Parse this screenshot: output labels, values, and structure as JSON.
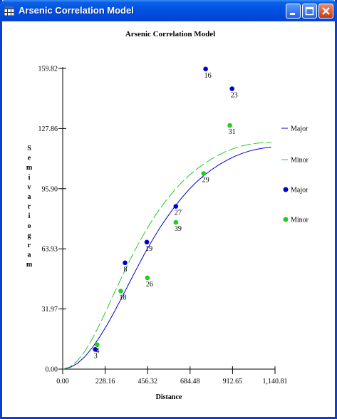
{
  "window": {
    "title": "Arsenic Correlation Model",
    "minimize_label": "Minimize",
    "maximize_label": "Maximize",
    "close_label": "Close"
  },
  "chart_data": {
    "type": "scatter",
    "title": "Arsenic Correlation Model",
    "xlabel": "Distance",
    "ylabel": "Semivariogram",
    "xlim": [
      0,
      1140.81
    ],
    "ylim": [
      0,
      159.82
    ],
    "x_ticks": [
      "0.00",
      "228.16",
      "456.32",
      "684.48",
      "912.65",
      "1,140.81"
    ],
    "y_ticks": [
      "0.00",
      "31.97",
      "63.93",
      "95.90",
      "127.86",
      "159.82"
    ],
    "x_tick_values": [
      0,
      228.16,
      456.32,
      684.48,
      912.65,
      1140.81
    ],
    "y_tick_values": [
      0,
      31.97,
      63.93,
      95.9,
      127.86,
      159.82
    ],
    "grid": false,
    "legend_position": "right",
    "series": [
      {
        "name": "Major",
        "kind": "line",
        "color": "#0000cc",
        "x": [
          0,
          40,
          80,
          120,
          160,
          200,
          240,
          280,
          320,
          360,
          400,
          440,
          480,
          520,
          560,
          600,
          640,
          680,
          720,
          760,
          800,
          840,
          880,
          920,
          960,
          1000,
          1040,
          1080,
          1120
        ],
        "y": [
          0,
          0.9,
          3.1,
          6.7,
          11.5,
          17.3,
          23.8,
          30.9,
          38.5,
          46.2,
          53.9,
          61.3,
          68.3,
          74.8,
          80.6,
          86.1,
          91.1,
          95.6,
          99.6,
          103.0,
          106.0,
          108.6,
          110.9,
          112.9,
          114.5,
          115.8,
          116.8,
          117.5,
          118.0
        ]
      },
      {
        "name": "Minor",
        "kind": "line",
        "color": "#22cc22",
        "x": [
          0,
          40,
          80,
          120,
          160,
          200,
          240,
          280,
          320,
          360,
          400,
          440,
          480,
          520,
          560,
          600,
          640,
          680,
          720,
          760,
          800,
          840,
          880,
          920,
          960,
          1000,
          1040,
          1080,
          1120
        ],
        "y": [
          0,
          1.2,
          4.5,
          9.6,
          16.3,
          24.0,
          32.4,
          41.0,
          49.5,
          57.7,
          65.4,
          72.5,
          79.0,
          84.9,
          90.2,
          95.0,
          99.3,
          103.0,
          106.3,
          109.2,
          111.7,
          113.9,
          115.8,
          117.3,
          118.5,
          119.4,
          120.0,
          120.4,
          120.6
        ]
      },
      {
        "name": "Major",
        "kind": "points",
        "color": "#0000cc",
        "points": [
          {
            "label": "3",
            "x": 175,
            "y": 10.5
          },
          {
            "label": "8",
            "x": 335,
            "y": 56.5
          },
          {
            "label": "19",
            "x": 452,
            "y": 67.5
          },
          {
            "label": "27",
            "x": 608,
            "y": 86.5
          },
          {
            "label": "16",
            "x": 768,
            "y": 159.5
          },
          {
            "label": "23",
            "x": 910,
            "y": 149.0
          }
        ]
      },
      {
        "name": "Minor",
        "kind": "points",
        "color": "#22cc22",
        "points": [
          {
            "label": "4",
            "x": 185,
            "y": 13.0
          },
          {
            "label": "18",
            "x": 312,
            "y": 41.5
          },
          {
            "label": "26",
            "x": 455,
            "y": 48.5
          },
          {
            "label": "39",
            "x": 608,
            "y": 78.0
          },
          {
            "label": "29",
            "x": 757,
            "y": 104.0
          },
          {
            "label": "31",
            "x": 898,
            "y": 129.5
          }
        ]
      }
    ],
    "legend": [
      {
        "label": "Major",
        "kind": "line",
        "color": "#0000cc"
      },
      {
        "label": "Minor",
        "kind": "line",
        "color": "#22cc22"
      },
      {
        "label": "Major",
        "kind": "point",
        "color": "#0000cc"
      },
      {
        "label": "Minor",
        "kind": "point",
        "color": "#22cc22"
      }
    ]
  }
}
